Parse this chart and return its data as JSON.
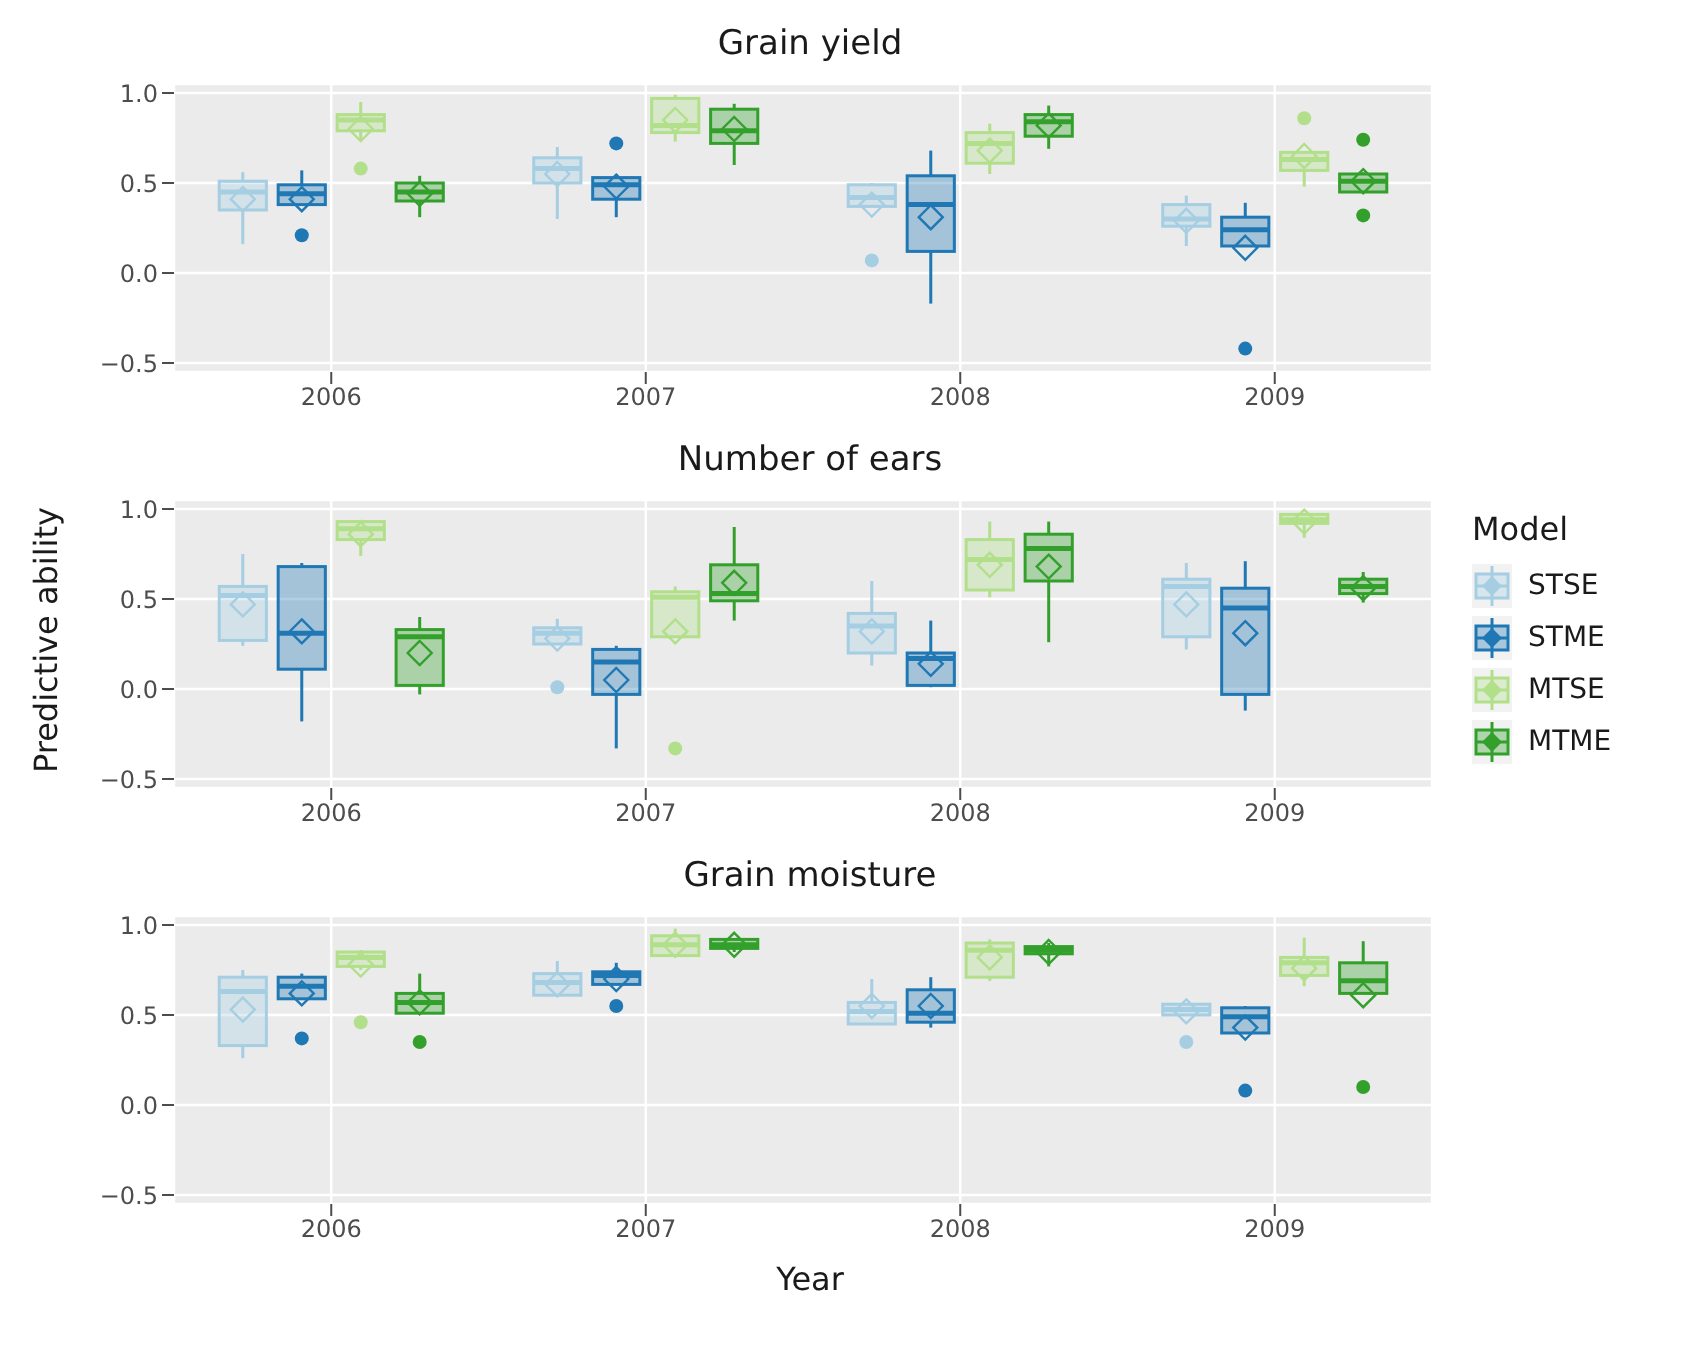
{
  "chart_data": [
    {
      "type": "box",
      "title": "Grain yield",
      "categories": [
        "2006",
        "2007",
        "2008",
        "2009"
      ],
      "ylim": [
        -0.55,
        1.05
      ],
      "yticks": [
        {
          "value": -0.5,
          "label": "−0.5"
        },
        {
          "value": 0,
          "label": "0.0"
        },
        {
          "value": 0.5,
          "label": "0.5"
        },
        {
          "value": 1,
          "label": "1.0"
        }
      ],
      "grid": true,
      "series": [
        {
          "color": "#a6cee3",
          "boxes": [
            {
              "low": 0.16,
              "q1": 0.35,
              "median": 0.45,
              "q3": 0.51,
              "high": 0.56,
              "mean": 0.41
            },
            {
              "low": 0.3,
              "q1": 0.5,
              "median": 0.58,
              "q3": 0.64,
              "high": 0.7,
              "mean": 0.55
            },
            {
              "low": 0.37,
              "q1": 0.37,
              "median": 0.42,
              "q3": 0.49,
              "high": 0.5,
              "mean": 0.38,
              "outliers": [
                0.07
              ]
            },
            {
              "low": 0.15,
              "q1": 0.26,
              "median": 0.3,
              "q3": 0.38,
              "high": 0.43,
              "mean": 0.29
            }
          ]
        },
        {
          "color": "#1f78b4",
          "boxes": [
            {
              "low": 0.38,
              "q1": 0.38,
              "median": 0.44,
              "q3": 0.49,
              "high": 0.57,
              "mean": 0.41,
              "outliers": [
                0.21
              ]
            },
            {
              "low": 0.31,
              "q1": 0.41,
              "median": 0.49,
              "q3": 0.53,
              "high": 0.55,
              "mean": 0.48,
              "outliers": [
                0.72
              ]
            },
            {
              "low": -0.17,
              "q1": 0.12,
              "median": 0.38,
              "q3": 0.54,
              "high": 0.68,
              "mean": 0.31
            },
            {
              "low": 0.15,
              "q1": 0.15,
              "median": 0.24,
              "q3": 0.31,
              "high": 0.39,
              "mean": 0.14,
              "outliers": [
                -0.42
              ]
            }
          ]
        },
        {
          "color": "#b2df8a",
          "boxes": [
            {
              "low": 0.74,
              "q1": 0.79,
              "median": 0.85,
              "q3": 0.88,
              "high": 0.95,
              "mean": 0.8,
              "outliers": [
                0.58
              ]
            },
            {
              "low": 0.73,
              "q1": 0.78,
              "median": 0.82,
              "q3": 0.97,
              "high": 0.99,
              "mean": 0.85
            },
            {
              "low": 0.55,
              "q1": 0.61,
              "median": 0.72,
              "q3": 0.78,
              "high": 0.83,
              "mean": 0.68
            },
            {
              "low": 0.48,
              "q1": 0.57,
              "median": 0.63,
              "q3": 0.67,
              "high": 0.67,
              "mean": 0.65,
              "outliers": [
                0.86
              ]
            }
          ]
        },
        {
          "color": "#33a02c",
          "boxes": [
            {
              "low": 0.31,
              "q1": 0.4,
              "median": 0.45,
              "q3": 0.5,
              "high": 0.54,
              "mean": 0.44
            },
            {
              "low": 0.6,
              "q1": 0.72,
              "median": 0.79,
              "q3": 0.91,
              "high": 0.94,
              "mean": 0.8
            },
            {
              "low": 0.69,
              "q1": 0.76,
              "median": 0.84,
              "q3": 0.88,
              "high": 0.93,
              "mean": 0.82
            },
            {
              "low": 0.45,
              "q1": 0.45,
              "median": 0.51,
              "q3": 0.55,
              "high": 0.56,
              "mean": 0.51,
              "outliers": [
                0.74,
                0.32
              ]
            }
          ]
        }
      ]
    },
    {
      "type": "box",
      "title": "Number of ears",
      "ylabel": "Predictive ability",
      "legend": "right",
      "legend_title": "Model",
      "categories": [
        "2006",
        "2007",
        "2008",
        "2009"
      ],
      "ylim": [
        -0.55,
        1.05
      ],
      "yticks": [
        {
          "value": -0.5,
          "label": "−0.5"
        },
        {
          "value": 0,
          "label": "0.0"
        },
        {
          "value": 0.5,
          "label": "0.5"
        },
        {
          "value": 1,
          "label": "1.0"
        }
      ],
      "grid": true,
      "series": [
        {
          "name": "STSE",
          "color": "#a6cee3",
          "boxes": [
            {
              "low": 0.24,
              "q1": 0.27,
              "median": 0.52,
              "q3": 0.57,
              "high": 0.75,
              "mean": 0.47
            },
            {
              "low": 0.25,
              "q1": 0.25,
              "median": 0.31,
              "q3": 0.34,
              "high": 0.39,
              "mean": 0.28,
              "outliers": [
                0.01
              ]
            },
            {
              "low": 0.13,
              "q1": 0.2,
              "median": 0.35,
              "q3": 0.42,
              "high": 0.6,
              "mean": 0.32
            },
            {
              "low": 0.22,
              "q1": 0.29,
              "median": 0.57,
              "q3": 0.61,
              "high": 0.7,
              "mean": 0.47
            }
          ]
        },
        {
          "name": "STME",
          "color": "#1f78b4",
          "boxes": [
            {
              "low": -0.18,
              "q1": 0.11,
              "median": 0.31,
              "q3": 0.68,
              "high": 0.7,
              "mean": 0.32
            },
            {
              "low": -0.33,
              "q1": -0.03,
              "median": 0.15,
              "q3": 0.22,
              "high": 0.24,
              "mean": 0.05
            },
            {
              "low": 0.01,
              "q1": 0.02,
              "median": 0.17,
              "q3": 0.2,
              "high": 0.38,
              "mean": 0.14
            },
            {
              "low": -0.12,
              "q1": -0.03,
              "median": 0.45,
              "q3": 0.56,
              "high": 0.71,
              "mean": 0.31
            }
          ]
        },
        {
          "name": "MTSE",
          "color": "#b2df8a",
          "boxes": [
            {
              "low": 0.74,
              "q1": 0.83,
              "median": 0.89,
              "q3": 0.93,
              "high": 0.94,
              "mean": 0.86
            },
            {
              "low": 0.29,
              "q1": 0.29,
              "median": 0.51,
              "q3": 0.54,
              "high": 0.57,
              "mean": 0.32,
              "outliers": [
                -0.33
              ]
            },
            {
              "low": 0.51,
              "q1": 0.55,
              "median": 0.72,
              "q3": 0.83,
              "high": 0.93,
              "mean": 0.69
            },
            {
              "low": 0.84,
              "q1": 0.92,
              "median": 0.94,
              "q3": 0.97,
              "high": 0.97,
              "mean": 0.93
            }
          ]
        },
        {
          "name": "MTME",
          "color": "#33a02c",
          "boxes": [
            {
              "low": -0.03,
              "q1": 0.02,
              "median": 0.29,
              "q3": 0.33,
              "high": 0.4,
              "mean": 0.2
            },
            {
              "low": 0.38,
              "q1": 0.49,
              "median": 0.53,
              "q3": 0.69,
              "high": 0.9,
              "mean": 0.59
            },
            {
              "low": 0.26,
              "q1": 0.6,
              "median": 0.78,
              "q3": 0.86,
              "high": 0.93,
              "mean": 0.68
            },
            {
              "low": 0.48,
              "q1": 0.53,
              "median": 0.57,
              "q3": 0.61,
              "high": 0.65,
              "mean": 0.56
            }
          ]
        }
      ]
    },
    {
      "type": "box",
      "title": "Grain moisture",
      "xlabel": "Year",
      "categories": [
        "2006",
        "2007",
        "2008",
        "2009"
      ],
      "ylim": [
        -0.55,
        1.05
      ],
      "yticks": [
        {
          "value": -0.5,
          "label": "−0.5"
        },
        {
          "value": 0,
          "label": "0.0"
        },
        {
          "value": 0.5,
          "label": "0.5"
        },
        {
          "value": 1,
          "label": "1.0"
        }
      ],
      "grid": true,
      "series": [
        {
          "color": "#a6cee3",
          "boxes": [
            {
              "low": 0.26,
              "q1": 0.33,
              "median": 0.63,
              "q3": 0.71,
              "high": 0.75,
              "mean": 0.53
            },
            {
              "low": 0.61,
              "q1": 0.61,
              "median": 0.68,
              "q3": 0.73,
              "high": 0.8,
              "mean": 0.67
            },
            {
              "low": 0.45,
              "q1": 0.45,
              "median": 0.52,
              "q3": 0.57,
              "high": 0.7,
              "mean": 0.55
            },
            {
              "low": 0.5,
              "q1": 0.5,
              "median": 0.53,
              "q3": 0.56,
              "high": 0.56,
              "mean": 0.52,
              "outliers": [
                0.35
              ]
            }
          ]
        },
        {
          "color": "#1f78b4",
          "boxes": [
            {
              "low": 0.59,
              "q1": 0.59,
              "median": 0.66,
              "q3": 0.71,
              "high": 0.73,
              "mean": 0.62,
              "outliers": [
                0.37
              ]
            },
            {
              "low": 0.67,
              "q1": 0.67,
              "median": 0.72,
              "q3": 0.74,
              "high": 0.79,
              "mean": 0.7,
              "outliers": [
                0.55
              ]
            },
            {
              "low": 0.43,
              "q1": 0.46,
              "median": 0.51,
              "q3": 0.64,
              "high": 0.71,
              "mean": 0.55
            },
            {
              "low": 0.4,
              "q1": 0.4,
              "median": 0.49,
              "q3": 0.54,
              "high": 0.55,
              "mean": 0.43,
              "outliers": [
                0.08
              ]
            }
          ]
        },
        {
          "color": "#b2df8a",
          "boxes": [
            {
              "low": 0.75,
              "q1": 0.77,
              "median": 0.82,
              "q3": 0.85,
              "high": 0.86,
              "mean": 0.78,
              "outliers": [
                0.46
              ]
            },
            {
              "low": 0.83,
              "q1": 0.83,
              "median": 0.89,
              "q3": 0.94,
              "high": 0.98,
              "mean": 0.89
            },
            {
              "low": 0.69,
              "q1": 0.71,
              "median": 0.86,
              "q3": 0.9,
              "high": 0.92,
              "mean": 0.82
            },
            {
              "low": 0.66,
              "q1": 0.72,
              "median": 0.79,
              "q3": 0.82,
              "high": 0.93,
              "mean": 0.76
            }
          ]
        },
        {
          "color": "#33a02c",
          "boxes": [
            {
              "low": 0.51,
              "q1": 0.51,
              "median": 0.57,
              "q3": 0.62,
              "high": 0.73,
              "mean": 0.57,
              "outliers": [
                0.35
              ]
            },
            {
              "low": 0.85,
              "q1": 0.87,
              "median": 0.89,
              "q3": 0.92,
              "high": 0.92,
              "mean": 0.89
            },
            {
              "low": 0.77,
              "q1": 0.84,
              "median": 0.86,
              "q3": 0.88,
              "high": 0.9,
              "mean": 0.85
            },
            {
              "low": 0.62,
              "q1": 0.62,
              "median": 0.69,
              "q3": 0.79,
              "high": 0.91,
              "mean": 0.61,
              "outliers": [
                0.1
              ]
            }
          ]
        }
      ]
    }
  ]
}
